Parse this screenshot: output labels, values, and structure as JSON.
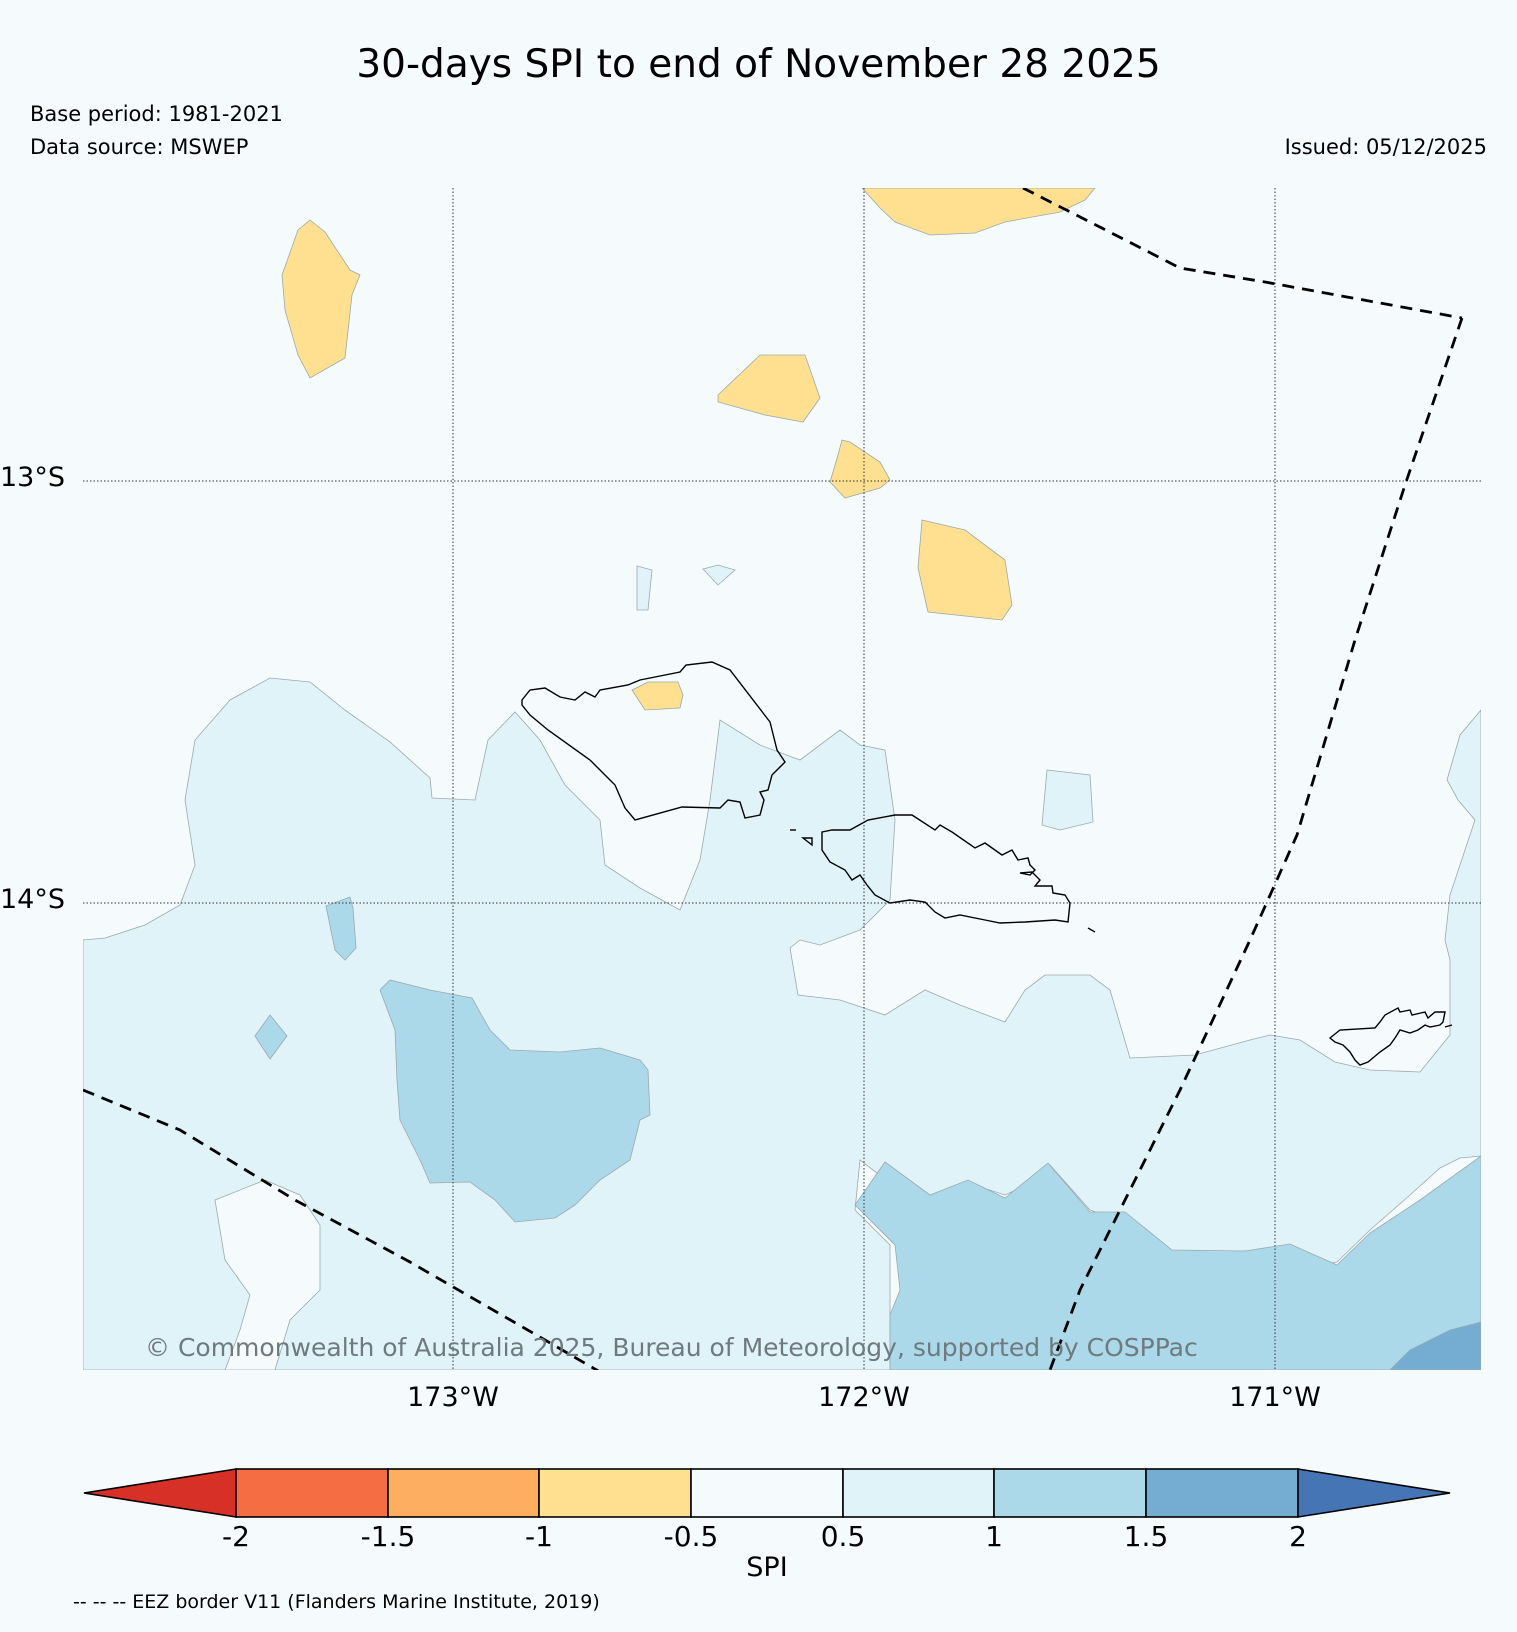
{
  "title": "30-days SPI to end of November 28 2025",
  "base_period": "Base period: 1981-2021",
  "data_source": "Data source: MSWEP",
  "issued": "Issued: 05/12/2025",
  "copyright": "© Commonwealth of Australia 2025, Bureau of Meteorology, supported by COSPPac",
  "latitude_labels": [
    "13°S",
    "14°S"
  ],
  "longitude_labels": [
    "173°W",
    "172°W",
    "171°W"
  ],
  "colorbar": {
    "label": "SPI",
    "ticks": [
      "-2",
      "-1.5",
      "-1",
      "-0.5",
      "0.5",
      "1",
      "1.5",
      "2"
    ],
    "colors": [
      "#d73027",
      "#f46d43",
      "#fdae61",
      "#fee090",
      "#f5fbfc",
      "#e0f3f8",
      "#abd9e9",
      "#74add1",
      "#4575b4"
    ]
  },
  "legend_note": "-- -- -- EEZ border V11 (Flanders Marine Institute, 2019)",
  "colors": {
    "dry": "#fee090",
    "normal": "#f5fbfc",
    "wet_light": "#e0f3f8",
    "wet_mid": "#abd9e9",
    "wet_strong": "#74add1"
  }
}
